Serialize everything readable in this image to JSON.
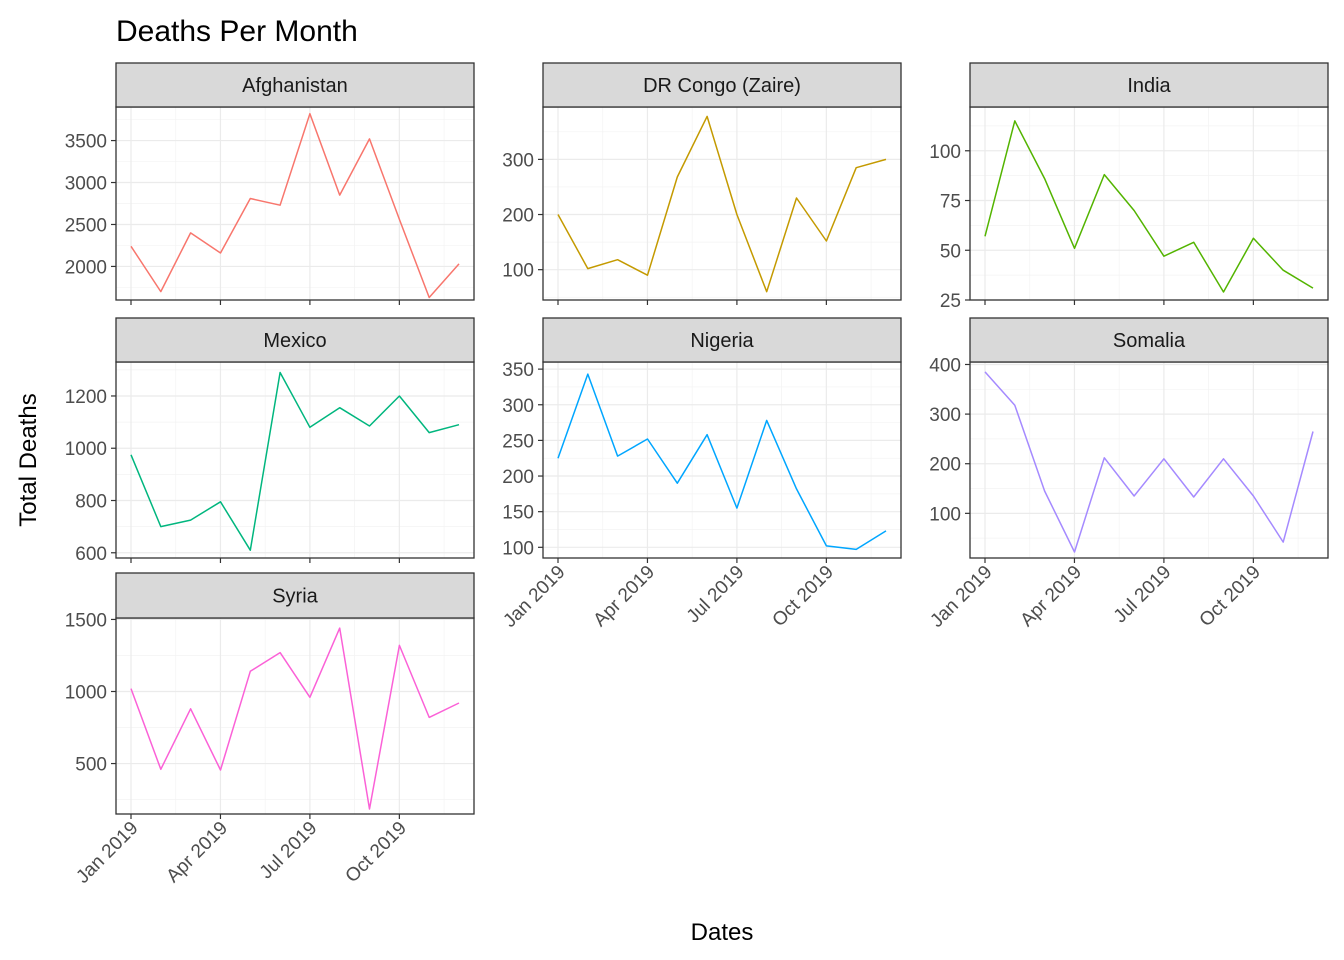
{
  "chart_data": {
    "type": "line",
    "title": "Deaths Per Month",
    "xlabel": "Dates",
    "ylabel": "Total Deaths",
    "legend": "none",
    "grid": true,
    "x": [
      "2019-01",
      "2019-02",
      "2019-03",
      "2019-04",
      "2019-05",
      "2019-06",
      "2019-07",
      "2019-08",
      "2019-09",
      "2019-10",
      "2019-11",
      "2019-12"
    ],
    "x_ticks": [
      {
        "month": 0,
        "label": "Jan 2019"
      },
      {
        "month": 3,
        "label": "Apr 2019"
      },
      {
        "month": 6,
        "label": "Jul 2019"
      },
      {
        "month": 9,
        "label": "Oct 2019"
      }
    ],
    "panels": [
      {
        "name": "Afghanistan",
        "color": "#f8766d",
        "ylim": [
          1600,
          3900
        ],
        "yticks": [
          2000,
          2500,
          3000,
          3500
        ],
        "values": [
          2240,
          1700,
          2400,
          2160,
          2810,
          2730,
          3820,
          2850,
          3520,
          2560,
          1630,
          2030
        ]
      },
      {
        "name": "DR Congo (Zaire)",
        "color": "#c49a00",
        "ylim": [
          45,
          395
        ],
        "yticks": [
          100,
          200,
          300
        ],
        "values": [
          200,
          102,
          118,
          90,
          268,
          378,
          200,
          60,
          230,
          152,
          285,
          300
        ]
      },
      {
        "name": "India",
        "color": "#53b400",
        "ylim": [
          25,
          122
        ],
        "yticks": [
          25,
          50,
          75,
          100
        ],
        "values": [
          57,
          115,
          86,
          51,
          88,
          70,
          47,
          54,
          29,
          56,
          40,
          31
        ]
      },
      {
        "name": "Mexico",
        "color": "#00b67e",
        "ylim": [
          580,
          1330
        ],
        "yticks": [
          600,
          800,
          1000,
          1200
        ],
        "values": [
          975,
          700,
          725,
          795,
          610,
          1290,
          1080,
          1155,
          1085,
          1200,
          1060,
          1090
        ]
      },
      {
        "name": "Nigeria",
        "color": "#00a6ff",
        "ylim": [
          85,
          360
        ],
        "yticks": [
          100,
          150,
          200,
          250,
          300,
          350
        ],
        "values": [
          225,
          343,
          228,
          252,
          190,
          258,
          155,
          278,
          182,
          102,
          97,
          123
        ]
      },
      {
        "name": "Somalia",
        "color": "#a58aff",
        "ylim": [
          10,
          405
        ],
        "yticks": [
          100,
          200,
          300,
          400
        ],
        "values": [
          385,
          318,
          145,
          22,
          212,
          135,
          210,
          133,
          210,
          135,
          42,
          265
        ]
      },
      {
        "name": "Syria",
        "color": "#fb61d7",
        "ylim": [
          150,
          1510
        ],
        "yticks": [
          500,
          1000,
          1500
        ],
        "values": [
          1020,
          460,
          880,
          455,
          1140,
          1270,
          960,
          1440,
          185,
          1320,
          820,
          920
        ]
      }
    ]
  }
}
